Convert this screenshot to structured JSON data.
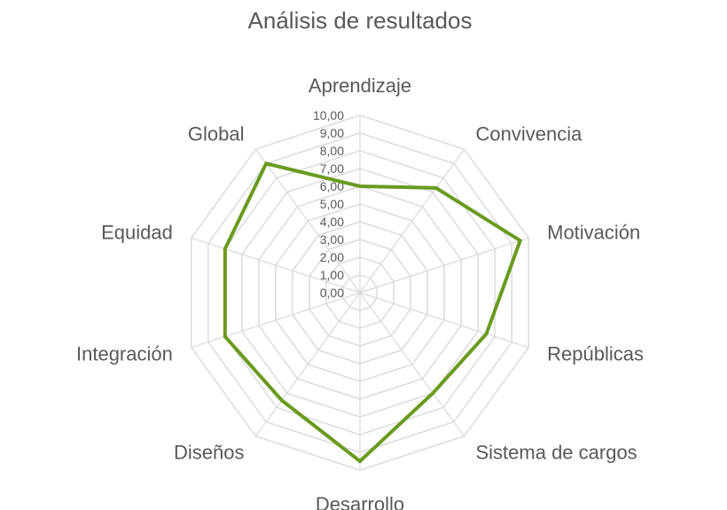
{
  "chart_data": {
    "type": "radar",
    "title": "Análisis de resultados",
    "categories": [
      "Aprendizaje",
      "Convivencia",
      "Motivación",
      "Repúblicas",
      "Sistema de cargos",
      "Desarrollo",
      "Diseños",
      "Integración",
      "Equidad",
      "Global"
    ],
    "series": [
      {
        "values": [
          6.0,
          7.3,
          9.5,
          7.5,
          7.0,
          9.5,
          7.5,
          8.0,
          8.0,
          9.0
        ]
      }
    ],
    "r_ticks": [
      "0,00",
      "1,00",
      "2,00",
      "3,00",
      "4,00",
      "5,00",
      "6,00",
      "7,00",
      "8,00",
      "9,00",
      "10,00"
    ],
    "rlim": [
      0,
      10
    ],
    "grid": true,
    "legend": "none",
    "colors": {
      "series": "#6b9a1f",
      "grid": "#d9d9d9",
      "text": "#595959"
    }
  }
}
